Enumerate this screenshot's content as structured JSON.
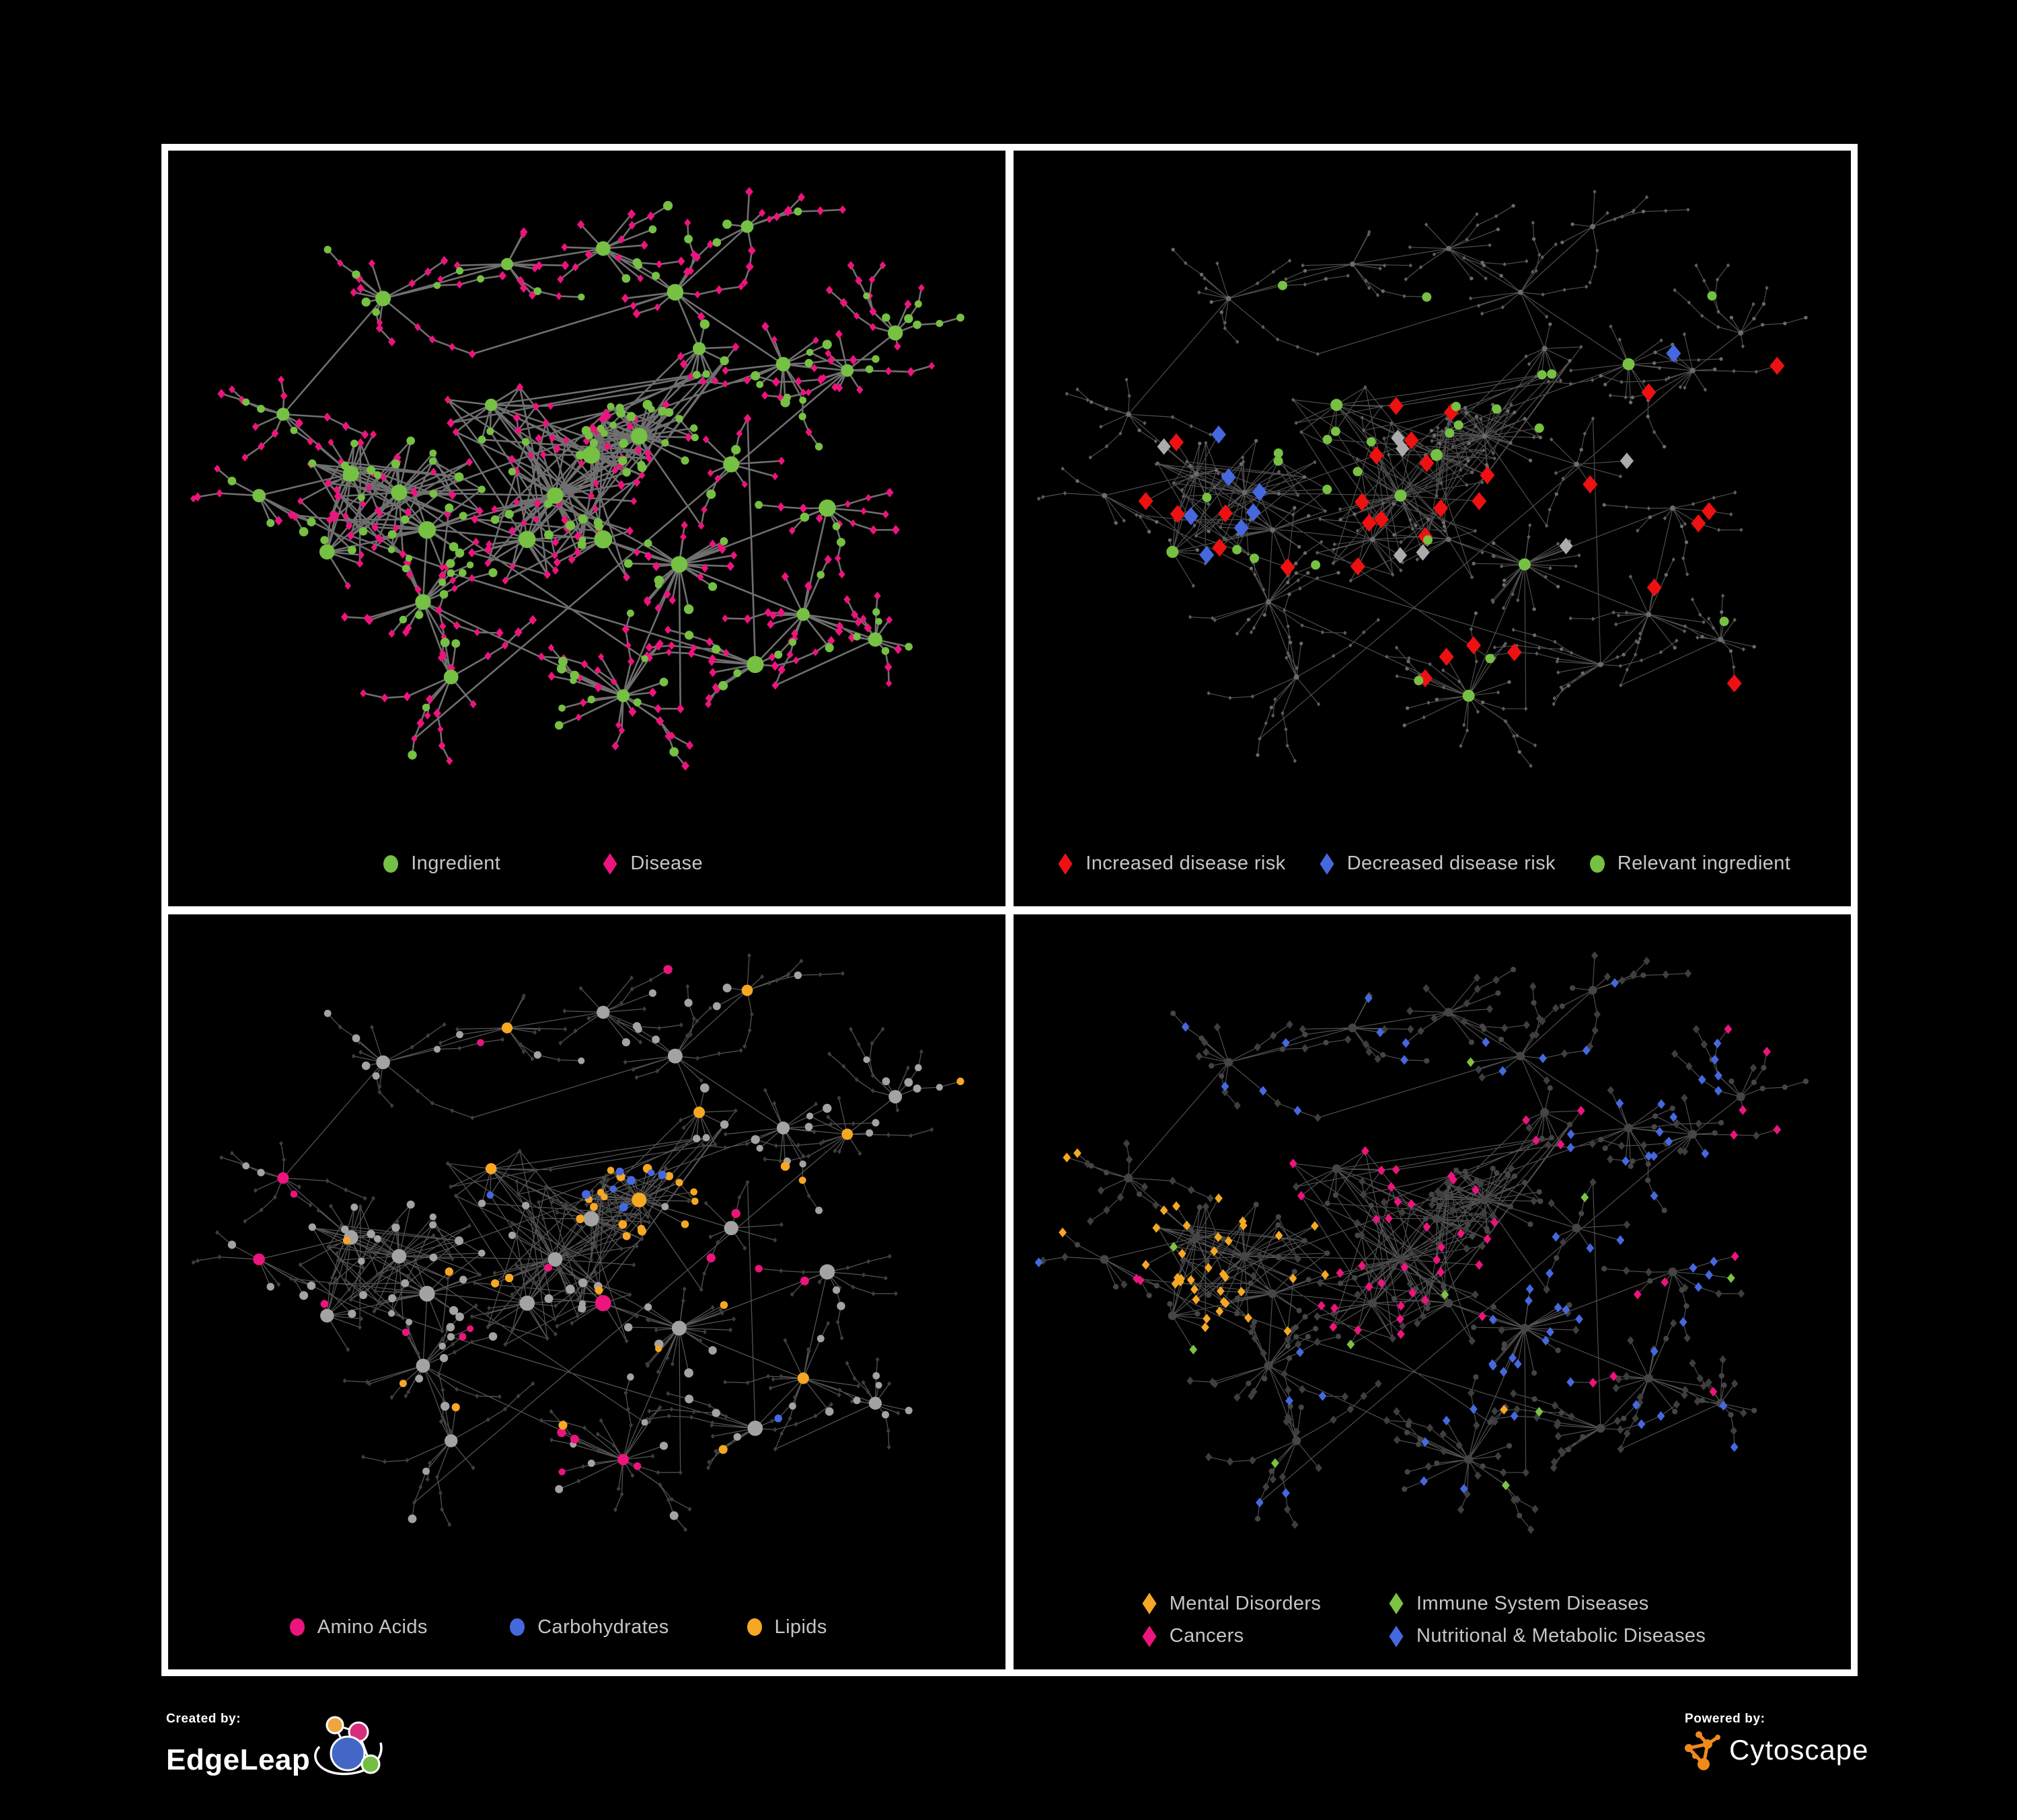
{
  "figure": {
    "background": "#000000",
    "frame_color": "#FFFFFF"
  },
  "panels": [
    {
      "id": "ingredient-disease",
      "legend": [
        {
          "label": "Ingredient",
          "shape": "circle",
          "color": "#76C043"
        },
        {
          "label": "Disease",
          "shape": "diamond",
          "color": "#EC147D"
        }
      ]
    },
    {
      "id": "disease-risk",
      "legend": [
        {
          "label": "Increased disease risk",
          "shape": "diamond",
          "color": "#EE1111"
        },
        {
          "label": "Decreased disease risk",
          "shape": "diamond",
          "color": "#4668DF"
        },
        {
          "label": "Relevant ingredient",
          "shape": "circle",
          "color": "#76C043"
        }
      ]
    },
    {
      "id": "ingredient-classes",
      "legend": [
        {
          "label": "Amino Acids",
          "shape": "circle",
          "color": "#EC147D"
        },
        {
          "label": "Carbohydrates",
          "shape": "circle",
          "color": "#4668DF"
        },
        {
          "label": "Lipids",
          "shape": "circle",
          "color": "#F6A723"
        }
      ]
    },
    {
      "id": "disease-classes",
      "legend": [
        {
          "label": "Mental Disorders",
          "shape": "diamond",
          "color": "#F6A723"
        },
        {
          "label": "Immune System Diseases",
          "shape": "diamond",
          "color": "#7DC242"
        },
        {
          "label": "Cancers",
          "shape": "diamond",
          "color": "#EC147D"
        },
        {
          "label": "Nutritional & Metabolic Diseases",
          "shape": "diamond",
          "color": "#4668DF"
        }
      ]
    }
  ],
  "footer": {
    "created_by_label": "Created by:",
    "created_by_name": "EdgeLeap",
    "powered_by_label": "Powered by:",
    "powered_by_name": "Cytoscape"
  },
  "network": {
    "seed": 20230517,
    "palette": {
      "green": "#76C043",
      "pink": "#EC147D",
      "red": "#EE1111",
      "blue": "#4668DF",
      "silver": "#ABABAB",
      "amber": "#F6A723",
      "immune_green": "#7DC242",
      "edge_main": "#7B7B7B",
      "edge_muted": "#5E5E5E",
      "dim_dot": "#6B6B6B",
      "dim_diamond": "#5F5F5F",
      "dark_diamond": "#3E3E3E",
      "gray_circle": "#A3A3A3",
      "dark_circle": "#454545"
    },
    "legend_text_color": "#C6C6C6",
    "node_count_approx": 630
  }
}
